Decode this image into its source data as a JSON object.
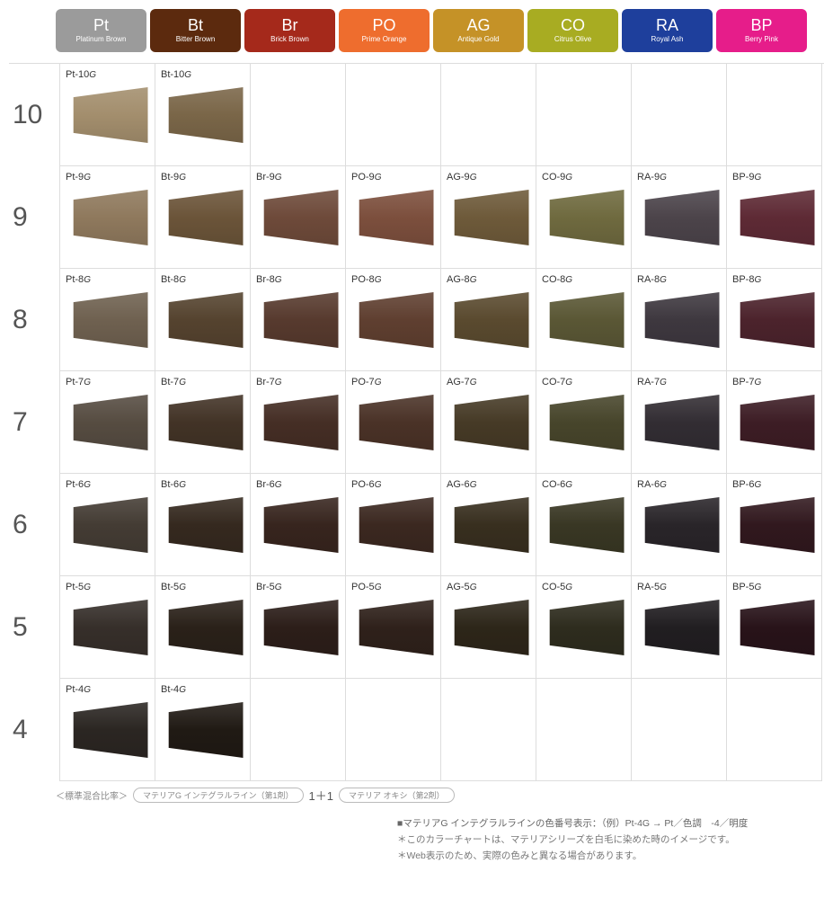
{
  "columns": [
    {
      "code": "Pt",
      "name": "Platinum Brown",
      "bg": "#9b9b9b"
    },
    {
      "code": "Bt",
      "name": "Bitter Brown",
      "bg": "#5c2a0e"
    },
    {
      "code": "Br",
      "name": "Brick Brown",
      "bg": "#a5291b"
    },
    {
      "code": "PO",
      "name": "Prime Orange",
      "bg": "#ee6d2e"
    },
    {
      "code": "AG",
      "name": "Antique Gold",
      "bg": "#c59227"
    },
    {
      "code": "CO",
      "name": "Citrus Olive",
      "bg": "#a8ac22"
    },
    {
      "code": "RA",
      "name": "Royal Ash",
      "bg": "#1e3f9c"
    },
    {
      "code": "BP",
      "name": "Berry Pink",
      "bg": "#e61d8a"
    }
  ],
  "rows": [
    {
      "level": "10",
      "cells": [
        {
          "label": "Pt-10",
          "color": "#a38e6d"
        },
        {
          "label": "Bt-10",
          "color": "#7a6648"
        },
        null,
        null,
        null,
        null,
        null,
        null
      ]
    },
    {
      "level": "9",
      "cells": [
        {
          "label": "Pt-9",
          "color": "#8f795d"
        },
        {
          "label": "Bt-9",
          "color": "#6b5439"
        },
        {
          "label": "Br-9",
          "color": "#6e4a3a"
        },
        {
          "label": "PO-9",
          "color": "#7c4f3d"
        },
        {
          "label": "AG-9",
          "color": "#6e5a3a"
        },
        {
          "label": "CO-9",
          "color": "#6f6a3f"
        },
        {
          "label": "RA-9",
          "color": "#4c444a"
        },
        {
          "label": "BP-9",
          "color": "#5e2a35"
        }
      ]
    },
    {
      "level": "8",
      "cells": [
        {
          "label": "Pt-8",
          "color": "#6f6150"
        },
        {
          "label": "Bt-8",
          "color": "#55432f"
        },
        {
          "label": "Br-8",
          "color": "#573a2e"
        },
        {
          "label": "PO-8",
          "color": "#5f3f30"
        },
        {
          "label": "AG-8",
          "color": "#5a4a2f"
        },
        {
          "label": "CO-8",
          "color": "#5a5735"
        },
        {
          "label": "RA-8",
          "color": "#3e383f"
        },
        {
          "label": "BP-8",
          "color": "#4c232c"
        }
      ]
    },
    {
      "level": "7",
      "cells": [
        {
          "label": "Pt-7",
          "color": "#564c41"
        },
        {
          "label": "Bt-7",
          "color": "#423326"
        },
        {
          "label": "Br-7",
          "color": "#452e25"
        },
        {
          "label": "PO-7",
          "color": "#4a3227"
        },
        {
          "label": "AG-7",
          "color": "#463a26"
        },
        {
          "label": "CO-7",
          "color": "#47452b"
        },
        {
          "label": "RA-7",
          "color": "#322d33"
        },
        {
          "label": "BP-7",
          "color": "#3d1d25"
        }
      ]
    },
    {
      "level": "6",
      "cells": [
        {
          "label": "Pt-6",
          "color": "#443c34"
        },
        {
          "label": "Bt-6",
          "color": "#35291f"
        },
        {
          "label": "Br-6",
          "color": "#37251e"
        },
        {
          "label": "PO-6",
          "color": "#3b2820"
        },
        {
          "label": "AG-6",
          "color": "#382f1f"
        },
        {
          "label": "CO-6",
          "color": "#393724"
        },
        {
          "label": "RA-6",
          "color": "#292529"
        },
        {
          "label": "BP-6",
          "color": "#31181e"
        }
      ]
    },
    {
      "level": "5",
      "cells": [
        {
          "label": "Pt-5",
          "color": "#362f2a"
        },
        {
          "label": "Bt-5",
          "color": "#2a2119"
        },
        {
          "label": "Br-5",
          "color": "#2c1e19"
        },
        {
          "label": "PO-5",
          "color": "#2f211b"
        },
        {
          "label": "AG-5",
          "color": "#2d2619"
        },
        {
          "label": "CO-5",
          "color": "#2e2c1e"
        },
        {
          "label": "RA-5",
          "color": "#211e21"
        },
        {
          "label": "BP-5",
          "color": "#281319"
        }
      ]
    },
    {
      "level": "4",
      "cells": [
        {
          "label": "Pt-4",
          "color": "#2b2622"
        },
        {
          "label": "Bt-4",
          "color": "#201a14"
        },
        null,
        null,
        null,
        null,
        null,
        null
      ]
    }
  ],
  "label_suffix": "G",
  "footer": {
    "mix_label": "＜標準混合比率＞",
    "pill1": "マテリアG  インテグラルライン（第1剤）",
    "plus": "1＋1",
    "pill2": "マテリア オキシ（第2剤）",
    "note1": "■マテリアG インテグラルラインの色番号表示：（例）Pt-4G → Pt／色調　-4／明度",
    "note2": "＊このカラーチャートは、マテリアシリーズを白毛に染めた時のイメージです。",
    "note3": "＊Web表示のため、実際の色みと異なる場合があります。"
  },
  "swatch_shape": "polygon(8% 18%, 100% 0%, 100% 100%, 8% 82%)"
}
